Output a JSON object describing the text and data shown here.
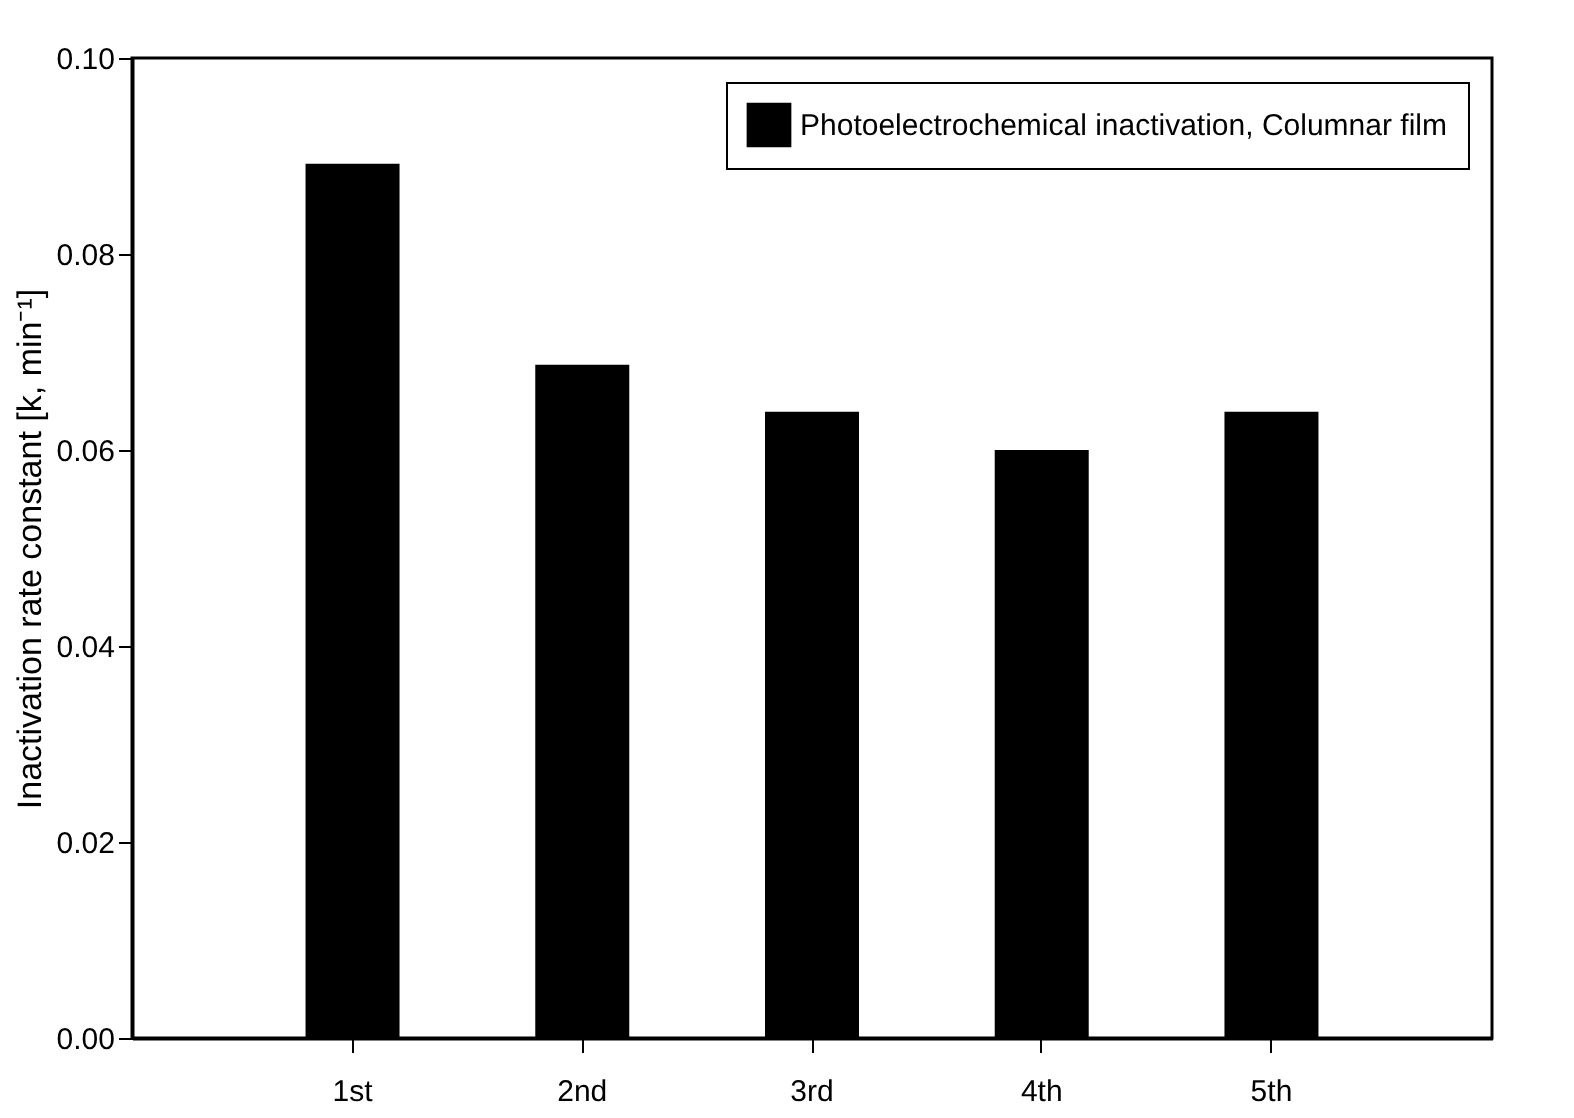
{
  "chart_data": {
    "type": "bar",
    "ylabel": "Inactivation rate constant [k, min⁻¹]",
    "categories": [
      "1st",
      "2nd",
      "3rd",
      "4th",
      "5th"
    ],
    "series": [
      {
        "name": "Photoelectrochemical inactivation, Columnar film",
        "color": "#000000",
        "values": [
          0.0892,
          0.0687,
          0.0639,
          0.06,
          0.0639
        ]
      }
    ],
    "ylim": [
      0,
      0.1
    ],
    "yticks": [
      {
        "value": 0,
        "label": "0.00"
      },
      0.02,
      0.04,
      0.06,
      0.08,
      {
        "value": 0.1,
        "label": "0.10"
      }
    ],
    "grid": false,
    "legend": "top right"
  }
}
